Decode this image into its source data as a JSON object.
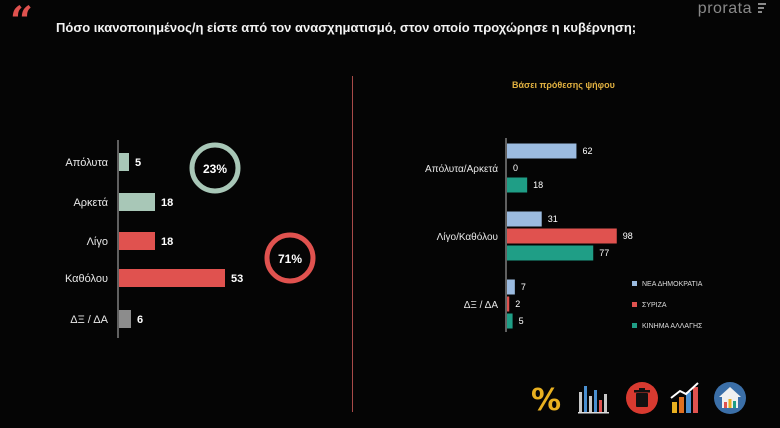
{
  "header": {
    "title": "Πόσο ικανοποιημένος/η είστε από τον ανασχηματισμό, στον οποίο προχώρησε η κυβέρνηση;",
    "brand": "prorata"
  },
  "colors": {
    "background": "#050505",
    "accent": "#e0524f",
    "green_light": "#a8c7b7",
    "red": "#e0524f",
    "grey": "#8c8c8c",
    "nd": "#9bbbe0",
    "syriza": "#e0524f",
    "kinal": "#1f9e86"
  },
  "chart_data": [
    {
      "type": "bar",
      "orientation": "horizontal",
      "categories": [
        "Απόλυτα",
        "Αρκετά",
        "Λίγο",
        "Καθόλου",
        "ΔΞ / ΔΑ"
      ],
      "values": [
        5,
        18,
        18,
        53,
        6
      ],
      "bar_colors": [
        "#a8c7b7",
        "#a8c7b7",
        "#e0524f",
        "#e0524f",
        "#8c8c8c"
      ],
      "annotations": [
        {
          "label": "23%",
          "color": "#a8c7b7",
          "group": [
            "Απόλυτα",
            "Αρκετά"
          ]
        },
        {
          "label": "71%",
          "color": "#e0524f",
          "group": [
            "Λίγο",
            "Καθόλου"
          ]
        }
      ],
      "grid": false
    },
    {
      "type": "bar",
      "orientation": "horizontal",
      "title": "Βάσει πρόθεσης ψήφου",
      "categories": [
        "Απόλυτα/Αρκετά",
        "Λίγο/Καθόλου",
        "ΔΞ / ΔΑ"
      ],
      "series": [
        {
          "name": "ΝΕΑ ΔΗΜΟΚΡΑΤΙΑ",
          "color": "#9bbbe0",
          "values": [
            62,
            31,
            7
          ]
        },
        {
          "name": "ΣΥΡΙΖΑ",
          "color": "#e0524f",
          "values": [
            0,
            98,
            2
          ]
        },
        {
          "name": "ΚΙΝΗΜΑ ΑΛΛΑΓΗΣ",
          "color": "#1f9e86",
          "values": [
            18,
            77,
            5
          ]
        }
      ],
      "legend": "right",
      "grid": false
    }
  ],
  "toolbar": {
    "icons": [
      "percent-icon",
      "bar-chart-icon",
      "trash-icon",
      "growth-chart-icon",
      "home-chart-icon"
    ]
  }
}
